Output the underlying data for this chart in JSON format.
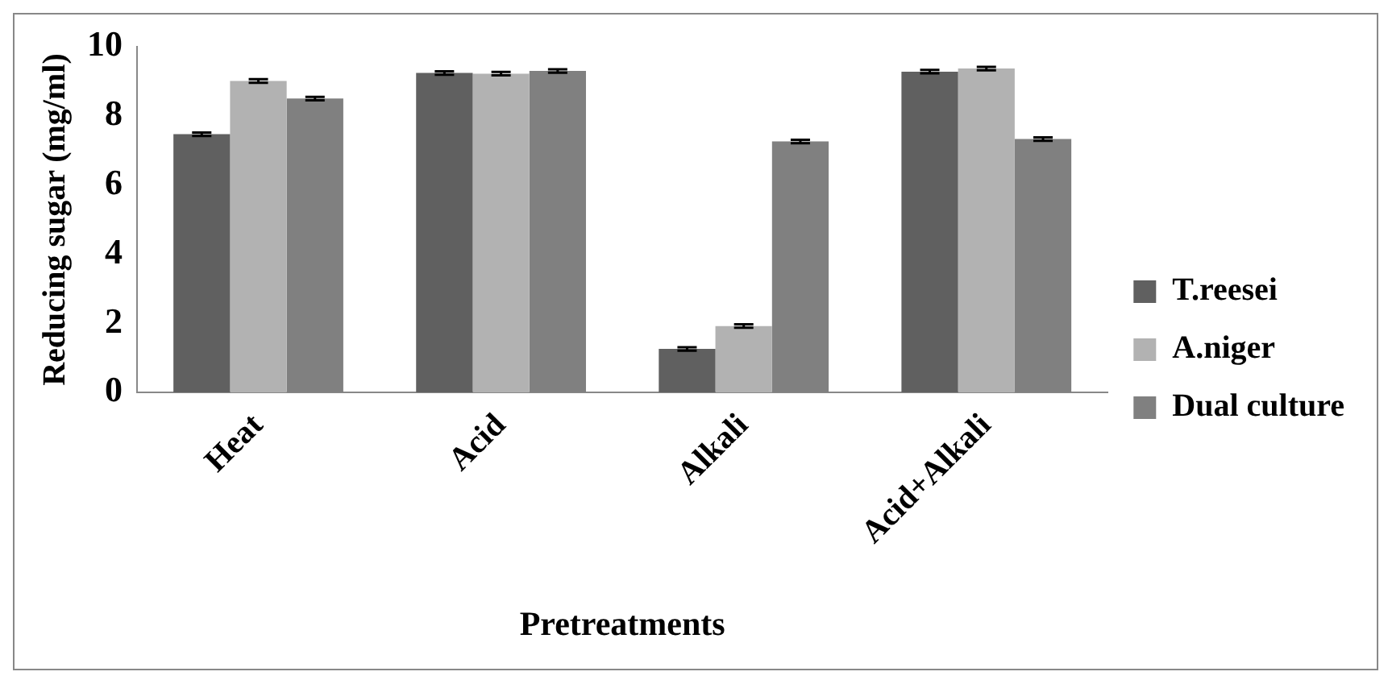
{
  "chart_data": {
    "type": "bar",
    "xlabel": "Pretreatments",
    "ylabel": "Reducing sugar (mg/ml)",
    "categories": [
      "Heat",
      "Acid",
      "Alkali",
      "Acid+Alkali"
    ],
    "series": [
      {
        "name": "T.reesei",
        "color": "#606060",
        "values": [
          7.47,
          9.24,
          1.26,
          9.28
        ],
        "errors": [
          0.05,
          0.05,
          0.05,
          0.05
        ]
      },
      {
        "name": "A.niger",
        "color": "#b2b2b2",
        "values": [
          9.01,
          9.22,
          1.92,
          9.37
        ],
        "errors": [
          0.05,
          0.05,
          0.05,
          0.05
        ]
      },
      {
        "name": "Dual culture",
        "color": "#808080",
        "values": [
          8.5,
          9.3,
          7.26,
          7.33
        ],
        "errors": [
          0.05,
          0.05,
          0.05,
          0.05
        ]
      }
    ],
    "ylim": [
      0,
      10
    ],
    "yticks": [
      0,
      2,
      4,
      6,
      8,
      10
    ],
    "grid": false,
    "legend": "right"
  }
}
